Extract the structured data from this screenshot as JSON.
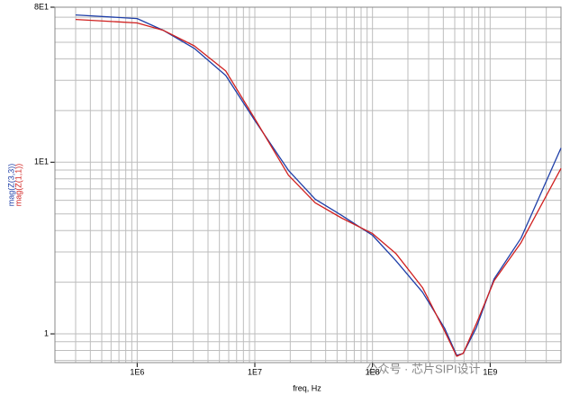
{
  "chart_data": {
    "type": "line",
    "x_label": "freq, Hz",
    "watermark": "公众号 · 芯片SIPI设计",
    "x": [
      300000,
      1000000,
      1660000,
      3060000,
      5660000,
      10000000,
      19300000,
      32600000,
      55000000,
      100000000,
      158000000,
      266000000,
      410000000,
      520000000,
      590000000,
      760000000,
      1080000000,
      1830000000,
      4000000000
    ],
    "series": [
      {
        "name": "mag(Z(3,3))",
        "color": "#1f3fa8",
        "values": [
          72.1,
          68.7,
          58.7,
          46,
          32,
          17.5,
          8.97,
          6.09,
          4.89,
          3.75,
          2.67,
          1.75,
          1.08,
          0.75,
          0.77,
          1.08,
          2.09,
          3.61,
          12.1
        ]
      },
      {
        "name": "mag(Z(1,1))",
        "color": "#d0201f",
        "values": [
          67.9,
          64.8,
          58.7,
          47.6,
          34,
          17.9,
          8.4,
          5.8,
          4.72,
          3.84,
          2.94,
          1.86,
          1.04,
          0.74,
          0.77,
          1.14,
          2.04,
          3.4,
          9.2
        ]
      }
    ],
    "xlim": [
      200000,
      4000000000
    ],
    "ylim": [
      0.68,
      80
    ],
    "xticks": [
      {
        "value": 1000000,
        "label": "1E6"
      },
      {
        "value": 10000000,
        "label": "1E7"
      },
      {
        "value": 100000000,
        "label": "1E8"
      },
      {
        "value": 1000000000,
        "label": "1E9"
      }
    ],
    "yticks": [
      1,
      {
        "value": 10,
        "label": "1E1"
      },
      {
        "value": 80,
        "label": "8E1"
      }
    ],
    "log_x": true,
    "log_y": true,
    "grid": true
  }
}
